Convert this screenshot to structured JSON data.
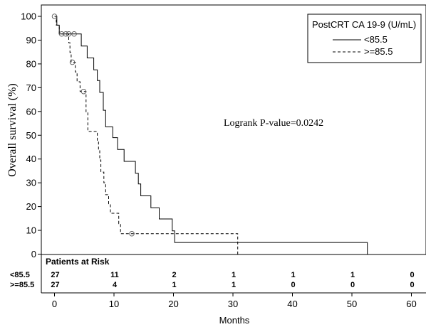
{
  "chart_data": {
    "type": "line",
    "subtype": "kaplan-meier",
    "xlabel": "Months",
    "ylabel": "Overall survival (%)",
    "xlim": [
      -1.5,
      61
    ],
    "ylim": [
      0,
      100
    ],
    "xticks": [
      0,
      10,
      20,
      30,
      40,
      50,
      60
    ],
    "yticks": [
      0,
      10,
      20,
      30,
      40,
      50,
      60,
      70,
      80,
      90,
      100
    ],
    "legend_title": "PostCRT CA 19-9 (U/mL)",
    "legend_position": "top-right",
    "annotation": "Logrank P-value=0.0242",
    "series": [
      {
        "name": "<85.5",
        "line_style": "solid",
        "color": "#000000",
        "steps": [
          [
            0,
            100
          ],
          [
            0.4,
            96.3
          ],
          [
            0.8,
            92.6
          ],
          [
            3.5,
            92.6
          ],
          [
            4.5,
            87.5
          ],
          [
            5.5,
            82.5
          ],
          [
            6.6,
            77.5
          ],
          [
            7.2,
            73
          ],
          [
            7.6,
            68
          ],
          [
            8.2,
            60.5
          ],
          [
            8.6,
            53.5
          ],
          [
            9.8,
            49
          ],
          [
            10.6,
            44
          ],
          [
            11.7,
            39
          ],
          [
            13.6,
            34
          ],
          [
            14.1,
            29.5
          ],
          [
            14.5,
            24.5
          ],
          [
            16.2,
            19.5
          ],
          [
            17.6,
            14.8
          ],
          [
            19.8,
            9.8
          ],
          [
            20.2,
            4.9
          ],
          [
            52.6,
            0
          ]
        ],
        "censored": [
          [
            2.4,
            92.6
          ]
        ]
      },
      {
        "name": ">=85.5",
        "line_style": "dashed",
        "color": "#000000",
        "steps": [
          [
            0,
            100
          ],
          [
            0.3,
            96.3
          ],
          [
            0.8,
            92.6
          ],
          [
            2.4,
            88.9
          ],
          [
            2.6,
            84.8
          ],
          [
            2.8,
            80.7
          ],
          [
            3.5,
            76.6
          ],
          [
            3.8,
            72.5
          ],
          [
            4.3,
            68.4
          ],
          [
            5.3,
            59.6
          ],
          [
            5.6,
            51.6
          ],
          [
            7.2,
            47.5
          ],
          [
            7.4,
            43.5
          ],
          [
            7.6,
            39.6
          ],
          [
            7.8,
            34.5
          ],
          [
            8.3,
            30
          ],
          [
            8.6,
            25
          ],
          [
            9.1,
            21.2
          ],
          [
            9.4,
            17.2
          ],
          [
            10.8,
            12.8
          ],
          [
            11.1,
            8.6
          ],
          [
            30.8,
            0
          ]
        ],
        "censored": [
          [
            0,
            100
          ],
          [
            1.2,
            92.6
          ],
          [
            1.9,
            92.6
          ],
          [
            3.3,
            92.6
          ],
          [
            3.0,
            80.7
          ],
          [
            4.9,
            68.4
          ],
          [
            13.0,
            8.6
          ]
        ]
      }
    ],
    "risk_table": {
      "title": "Patients at Risk",
      "times": [
        0,
        10,
        20,
        30,
        40,
        50,
        60
      ],
      "rows": [
        {
          "label": "<85.5",
          "counts": [
            "27",
            "11",
            "2",
            "1",
            "1",
            "1",
            "0"
          ]
        },
        {
          "label": ">=85.5",
          "counts": [
            "27",
            "4",
            "1",
            "1",
            "0",
            "0",
            "0"
          ]
        }
      ]
    }
  }
}
